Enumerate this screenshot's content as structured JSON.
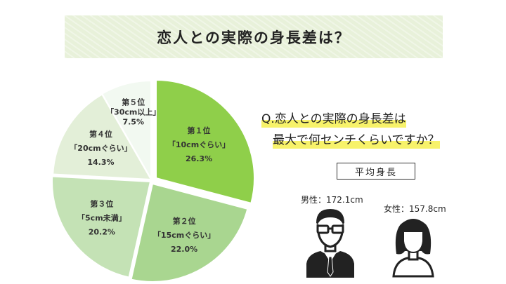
{
  "banner": {
    "title": "恋人との実際の身長差は？"
  },
  "question": {
    "line1": "Q.恋人との実際の身長差は",
    "line2": "最大で何センチくらいですか？"
  },
  "average": {
    "box_label": "平均身長",
    "male": "男性：172.1cm",
    "female": "女性：157.8cm"
  },
  "icons": {
    "male": "man-with-glasses-icon",
    "female": "woman-icon"
  },
  "chart_data": {
    "type": "pie",
    "title": "",
    "slices": [
      {
        "rank": "第１位",
        "category": "「10cmぐらい」",
        "value": 26.3,
        "percent_label": "26.3%",
        "color": "#8fcf4a"
      },
      {
        "rank": "第２位",
        "category": "「15cmぐらい」",
        "value": 22.0,
        "percent_label": "22.0%",
        "color": "#a9d690"
      },
      {
        "rank": "第３位",
        "category": "「5cm未満」",
        "value": 20.2,
        "percent_label": "20.2%",
        "color": "#c4e2b5"
      },
      {
        "rank": "第４位",
        "category": "「20cmぐらい」",
        "value": 14.3,
        "percent_label": "14.3%",
        "color": "#e3efd8"
      },
      {
        "rank": "第５位",
        "category": "「30cm以上」",
        "value": 7.5,
        "percent_label": "7.5%",
        "color": "#f2f9f1"
      }
    ]
  }
}
